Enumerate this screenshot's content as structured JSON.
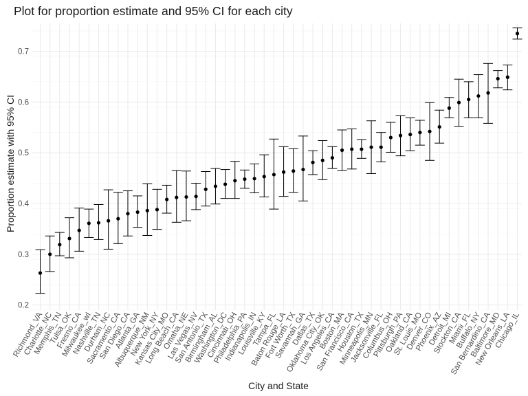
{
  "chart_data": {
    "type": "scatter",
    "title": "Plot for proportion estimate and 95% CI for each city",
    "xlabel": "City and State",
    "ylabel": "Proportion estimate with 95% CI",
    "ylim": [
      0.19,
      0.755
    ],
    "yticks": [
      "0.2",
      "0.3",
      "0.4",
      "0.5",
      "0.6",
      "0.7"
    ],
    "grid": true,
    "legend": "none",
    "colors": {
      "point": "#000000",
      "errorbar": "#000000",
      "grid_major": "#ebebeb",
      "grid_minor": "#f5f5f5"
    },
    "categories": [
      "Richmond_VA",
      "Charlotte_NC",
      "Memphis_TN",
      "Tulsa_OK",
      "Fresno_CA",
      "Milwaukee_wI",
      "Nashville_TN",
      "Durham_NC",
      "Sacramento_CA",
      "San Diego_CA",
      "Atlanta_GA",
      "Albuquerque_NM",
      "New York_NY",
      "Kansas City_MO",
      "Long Beach_CA",
      "Omaha_NE",
      "Las Vegas_NV",
      "San Antonio_TX",
      "Birmingham_AL",
      "Washington_DC",
      "Cincinnati_OH",
      "Philadelphia_PA",
      "Indianapolis_IN",
      "Louisville_KY",
      "Tampa_FL",
      "Baton Rouge_LA",
      "Fort Worth_TX",
      "Savannah_GA",
      "Dallas_TX",
      "Oklahoma City_OK",
      "Los Angeles_CA",
      "Boston_MA",
      "San Francisco_CA",
      "Houston_TX",
      "Minneapolis_MN",
      "Jacksonville_FL",
      "Columbus_OH",
      "Pittsburgh_PA",
      "Oakland_CA",
      "St. Louis_MO",
      "Denver_CO",
      "Phoenix_AZ",
      "Detroit_MI",
      "Stockton_CA",
      "Miami_FL",
      "Buffalo_NY",
      "San Bernardino_CA",
      "Baltimore_MD",
      "New Orleans_LA",
      "Chicago_IL"
    ],
    "series": [
      {
        "estimate": [
          0.263,
          0.3,
          0.319,
          0.331,
          0.347,
          0.361,
          0.362,
          0.366,
          0.37,
          0.38,
          0.383,
          0.386,
          0.388,
          0.408,
          0.412,
          0.413,
          0.414,
          0.428,
          0.434,
          0.438,
          0.445,
          0.448,
          0.449,
          0.453,
          0.457,
          0.462,
          0.464,
          0.467,
          0.481,
          0.485,
          0.49,
          0.505,
          0.507,
          0.507,
          0.511,
          0.511,
          0.53,
          0.534,
          0.536,
          0.54,
          0.542,
          0.551,
          0.588,
          0.599,
          0.605,
          0.612,
          0.618,
          0.646,
          0.649,
          0.735
        ],
        "ci_low": [
          0.223,
          0.266,
          0.297,
          0.293,
          0.306,
          0.333,
          0.329,
          0.31,
          0.321,
          0.336,
          0.353,
          0.337,
          0.349,
          0.381,
          0.363,
          0.366,
          0.388,
          0.395,
          0.399,
          0.41,
          0.41,
          0.43,
          0.421,
          0.413,
          0.389,
          0.414,
          0.422,
          0.405,
          0.457,
          0.447,
          0.469,
          0.465,
          0.468,
          0.489,
          0.459,
          0.482,
          0.501,
          0.494,
          0.504,
          0.515,
          0.485,
          0.519,
          0.569,
          0.552,
          0.569,
          0.569,
          0.558,
          0.628,
          0.624,
          0.724
        ],
        "ci_high": [
          0.309,
          0.336,
          0.343,
          0.372,
          0.391,
          0.389,
          0.398,
          0.427,
          0.422,
          0.425,
          0.415,
          0.439,
          0.428,
          0.436,
          0.465,
          0.464,
          0.44,
          0.463,
          0.469,
          0.467,
          0.483,
          0.466,
          0.478,
          0.496,
          0.527,
          0.512,
          0.508,
          0.533,
          0.504,
          0.524,
          0.512,
          0.545,
          0.547,
          0.526,
          0.563,
          0.54,
          0.56,
          0.573,
          0.569,
          0.564,
          0.599,
          0.584,
          0.609,
          0.645,
          0.64,
          0.654,
          0.676,
          0.662,
          0.673,
          0.746
        ]
      }
    ]
  }
}
